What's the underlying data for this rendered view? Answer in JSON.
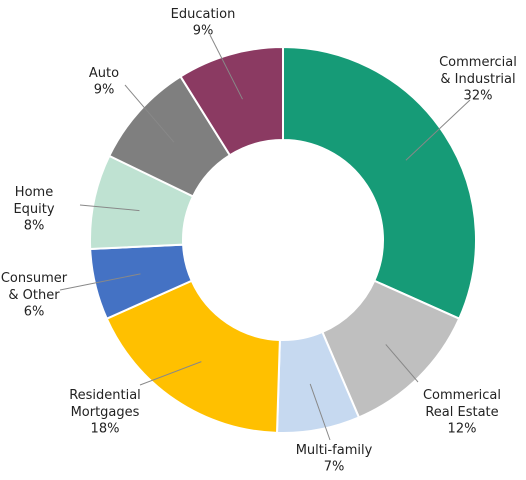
{
  "chart_data": {
    "type": "donut",
    "categories": [
      "Commercial\n& Industrial",
      "Commerical\nReal Estate",
      "Multi-family",
      "Residential\nMortgages",
      "Consumer\n& Other",
      "Home\nEquity",
      "Auto",
      "Education"
    ],
    "values": [
      32,
      12,
      7,
      18,
      6,
      8,
      9,
      9
    ],
    "value_labels": [
      "32%",
      "12%",
      "7%",
      "18%",
      "6%",
      "8%",
      "9%",
      "9%"
    ],
    "colors": [
      "#169b77",
      "#bfbfbf",
      "#c6d9f0",
      "#ffc000",
      "#4472c4",
      "#bfe2d2",
      "#7f7f7f",
      "#8b3a62"
    ]
  }
}
